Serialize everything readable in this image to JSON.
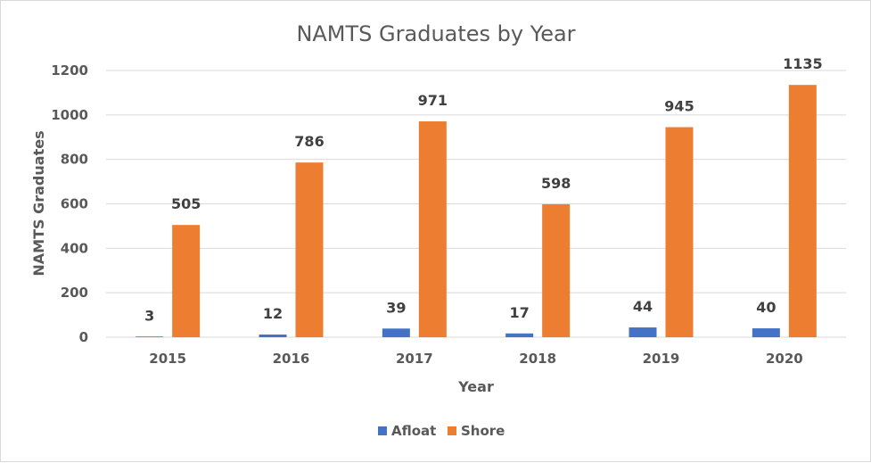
{
  "chart_data": {
    "type": "bar",
    "title": "NAMTS Graduates by Year",
    "xlabel": "Year",
    "ylabel": "NAMTS Graduates",
    "categories": [
      "2015",
      "2016",
      "2017",
      "2018",
      "2019",
      "2020"
    ],
    "ylim": [
      0,
      1200
    ],
    "yticks": [
      0,
      200,
      400,
      600,
      800,
      1000,
      1200
    ],
    "grid": true,
    "legend_position": "bottom",
    "series": [
      {
        "name": "Afloat",
        "color": "#4472c4",
        "values": [
          3,
          12,
          39,
          17,
          44,
          40
        ]
      },
      {
        "name": "Shore",
        "color": "#ed7d31",
        "values": [
          505,
          786,
          971,
          598,
          945,
          1135
        ]
      }
    ]
  }
}
